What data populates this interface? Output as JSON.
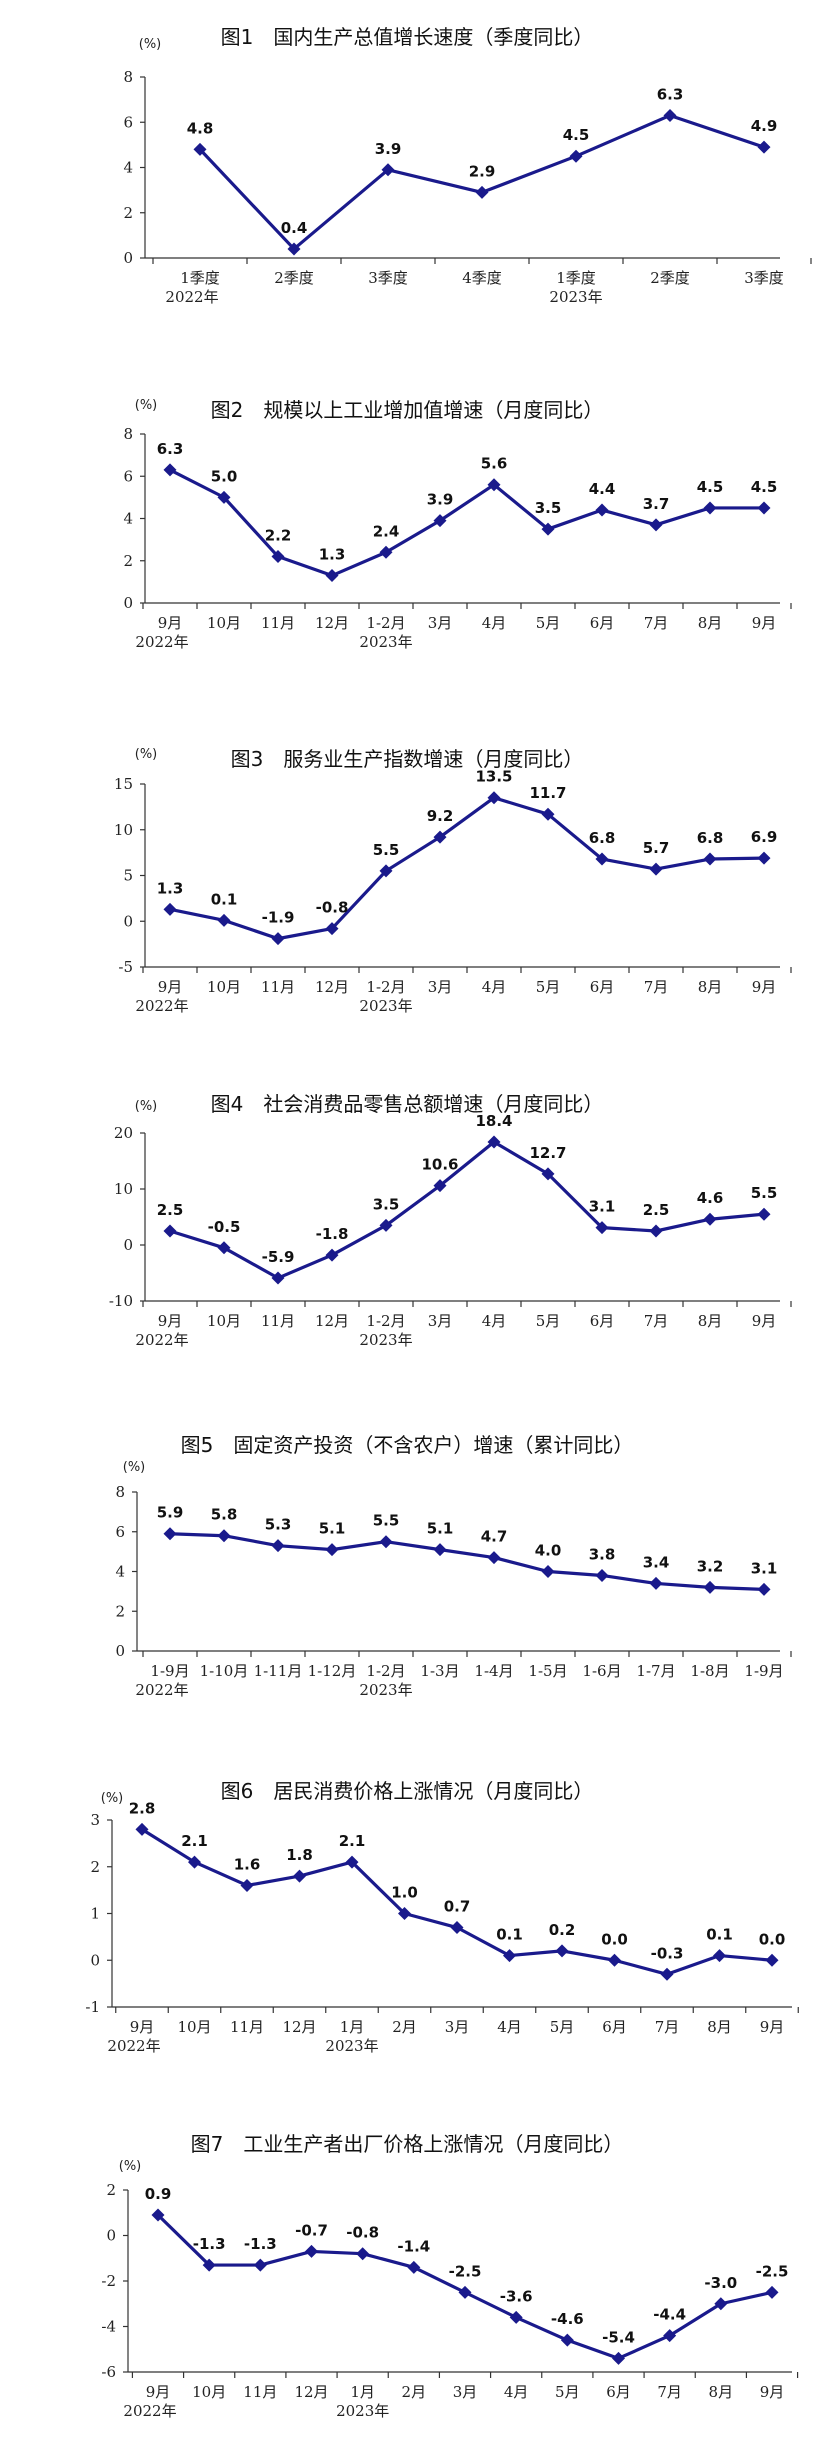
{
  "chart_data": [
    {
      "type": "line",
      "title": "图1　国内生产总值增长速度（季度同比）",
      "unit": "(%)",
      "ylim": [
        0,
        8
      ],
      "yticks": [
        0,
        2,
        4,
        6,
        8
      ],
      "categories": [
        "1季度",
        "2季度",
        "3季度",
        "4季度",
        "1季度",
        "2季度",
        "3季度"
      ],
      "year_labels": [
        {
          "index": 0,
          "label": "2022年"
        },
        {
          "index": 4,
          "label": "2023年"
        }
      ],
      "values": [
        4.8,
        0.4,
        3.9,
        2.9,
        4.5,
        6.3,
        4.9
      ],
      "labels": [
        "4.8",
        "0.4",
        "3.9",
        "2.9",
        "4.5",
        "6.3",
        "4.9"
      ]
    },
    {
      "type": "line",
      "title": "图2　规模以上工业增加值增速（月度同比）",
      "unit": "(%)",
      "ylim": [
        0,
        8
      ],
      "yticks": [
        0,
        2,
        4,
        6,
        8
      ],
      "categories": [
        "9月",
        "10月",
        "11月",
        "12月",
        "1-2月",
        "3月",
        "4月",
        "5月",
        "6月",
        "7月",
        "8月",
        "9月"
      ],
      "year_labels": [
        {
          "index": 0,
          "label": "2022年"
        },
        {
          "index": 4,
          "label": "2023年"
        }
      ],
      "values": [
        6.3,
        5.0,
        2.2,
        1.3,
        2.4,
        3.9,
        5.6,
        3.5,
        4.4,
        3.7,
        4.5,
        4.5
      ],
      "labels": [
        "6.3",
        "5.0",
        "2.2",
        "1.3",
        "2.4",
        "3.9",
        "5.6",
        "3.5",
        "4.4",
        "3.7",
        "4.5",
        "4.5"
      ]
    },
    {
      "type": "line",
      "title": "图3　服务业生产指数增速（月度同比）",
      "unit": "(%)",
      "ylim": [
        -5,
        15
      ],
      "yticks": [
        -5,
        0,
        5,
        10,
        15
      ],
      "categories": [
        "9月",
        "10月",
        "11月",
        "12月",
        "1-2月",
        "3月",
        "4月",
        "5月",
        "6月",
        "7月",
        "8月",
        "9月"
      ],
      "year_labels": [
        {
          "index": 0,
          "label": "2022年"
        },
        {
          "index": 4,
          "label": "2023年"
        }
      ],
      "values": [
        1.3,
        0.1,
        -1.9,
        -0.8,
        5.5,
        9.2,
        13.5,
        11.7,
        6.8,
        5.7,
        6.8,
        6.9
      ],
      "labels": [
        "1.3",
        "0.1",
        "-1.9",
        "-0.8",
        "5.5",
        "9.2",
        "13.5",
        "11.7",
        "6.8",
        "5.7",
        "6.8",
        "6.9"
      ]
    },
    {
      "type": "line",
      "title": "图4　社会消费品零售总额增速（月度同比）",
      "unit": "(%)",
      "ylim": [
        -10,
        20
      ],
      "yticks": [
        -10,
        0,
        10,
        20
      ],
      "categories": [
        "9月",
        "10月",
        "11月",
        "12月",
        "1-2月",
        "3月",
        "4月",
        "5月",
        "6月",
        "7月",
        "8月",
        "9月"
      ],
      "year_labels": [
        {
          "index": 0,
          "label": "2022年"
        },
        {
          "index": 4,
          "label": "2023年"
        }
      ],
      "values": [
        2.5,
        -0.5,
        -5.9,
        -1.8,
        3.5,
        10.6,
        18.4,
        12.7,
        3.1,
        2.5,
        4.6,
        5.5
      ],
      "labels": [
        "2.5",
        "-0.5",
        "-5.9",
        "-1.8",
        "3.5",
        "10.6",
        "18.4",
        "12.7",
        "3.1",
        "2.5",
        "4.6",
        "5.5"
      ]
    },
    {
      "type": "line",
      "title": "图5　固定资产投资（不含农户）增速（累计同比）",
      "unit": "(%)",
      "ylim": [
        0,
        8
      ],
      "yticks": [
        0,
        2,
        4,
        6,
        8
      ],
      "categories": [
        "1-9月",
        "1-10月",
        "1-11月",
        "1-12月",
        "1-2月",
        "1-3月",
        "1-4月",
        "1-5月",
        "1-6月",
        "1-7月",
        "1-8月",
        "1-9月"
      ],
      "year_labels": [
        {
          "index": 0,
          "label": "2022年"
        },
        {
          "index": 4,
          "label": "2023年"
        }
      ],
      "values": [
        5.9,
        5.8,
        5.3,
        5.1,
        5.5,
        5.1,
        4.7,
        4.0,
        3.8,
        3.4,
        3.2,
        3.1
      ],
      "labels": [
        "5.9",
        "5.8",
        "5.3",
        "5.1",
        "5.5",
        "5.1",
        "4.7",
        "4.0",
        "3.8",
        "3.4",
        "3.2",
        "3.1"
      ]
    },
    {
      "type": "line",
      "title": "图6　居民消费价格上涨情况（月度同比）",
      "unit": "(%)",
      "ylim": [
        -1,
        3
      ],
      "yticks": [
        -1,
        0,
        1,
        2,
        3
      ],
      "categories": [
        "9月",
        "10月",
        "11月",
        "12月",
        "1月",
        "2月",
        "3月",
        "4月",
        "5月",
        "6月",
        "7月",
        "8月",
        "9月"
      ],
      "year_labels": [
        {
          "index": 0,
          "label": "2022年"
        },
        {
          "index": 4,
          "label": "2023年"
        }
      ],
      "values": [
        2.8,
        2.1,
        1.6,
        1.8,
        2.1,
        1.0,
        0.7,
        0.1,
        0.2,
        0.0,
        -0.3,
        0.1,
        0.0
      ],
      "labels": [
        "2.8",
        "2.1",
        "1.6",
        "1.8",
        "2.1",
        "1.0",
        "0.7",
        "0.1",
        "0.2",
        "0.0",
        "-0.3",
        "0.1",
        "0.0"
      ]
    },
    {
      "type": "line",
      "title": "图7　工业生产者出厂价格上涨情况（月度同比）",
      "unit": "(%)",
      "ylim": [
        -6,
        2
      ],
      "yticks": [
        -6,
        -4,
        -2,
        0,
        2
      ],
      "categories": [
        "9月",
        "10月",
        "11月",
        "12月",
        "1月",
        "2月",
        "3月",
        "4月",
        "5月",
        "6月",
        "7月",
        "8月",
        "9月"
      ],
      "year_labels": [
        {
          "index": 0,
          "label": "2022年"
        },
        {
          "index": 4,
          "label": "2023年"
        }
      ],
      "values": [
        0.9,
        -1.3,
        -1.3,
        -0.7,
        -0.8,
        -1.4,
        -2.5,
        -3.6,
        -4.6,
        -5.4,
        -4.4,
        -3.0,
        -2.5
      ],
      "labels": [
        "0.9",
        "-1.3",
        "-1.3",
        "-0.7",
        "-0.8",
        "-1.4",
        "-2.5",
        "-3.6",
        "-4.6",
        "-5.4",
        "-4.4",
        "-3.0",
        "-2.5"
      ]
    }
  ]
}
